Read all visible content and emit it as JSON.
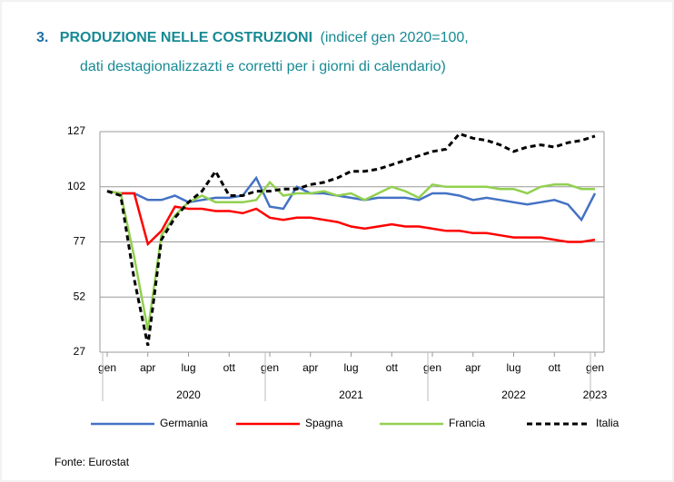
{
  "chart_data": {
    "type": "line",
    "title_number": "3.",
    "title": "PRODUZIONE NELLE COSTRUZIONI",
    "subtitle": [
      "(indicef gen 2020=100,",
      "dati destagionalizzazti e corretti per i giorni di calendario)"
    ],
    "categories": [
      "gen",
      null,
      null,
      "apr",
      null,
      null,
      "lug",
      null,
      null,
      "ott",
      null,
      null,
      "gen",
      null,
      null,
      "apr",
      null,
      null,
      "lug",
      null,
      null,
      "ott",
      null,
      null,
      "gen",
      null,
      null,
      "apr",
      null,
      null,
      "lug",
      null,
      null,
      "ott",
      null,
      null,
      "gen"
    ],
    "years": [
      "2020",
      "2021",
      "2022",
      "2023"
    ],
    "ylim": [
      27,
      127
    ],
    "yticks": [
      27,
      52,
      77,
      102,
      127
    ],
    "grid": true,
    "series": [
      {
        "name": "Germania",
        "color": "#4472c4",
        "dash": false,
        "values": [
          100,
          99,
          99,
          96,
          96,
          98,
          95,
          96,
          97,
          97,
          98,
          106,
          93,
          92,
          102,
          99,
          99,
          98,
          97,
          96,
          97,
          97,
          97,
          96,
          99,
          99,
          98,
          96,
          97,
          96,
          95,
          94,
          95,
          96,
          94,
          87,
          99
        ]
      },
      {
        "name": "Spagna",
        "color": "#ff0000",
        "dash": false,
        "values": [
          100,
          99,
          99,
          76,
          82,
          93,
          92,
          92,
          91,
          91,
          90,
          92,
          88,
          87,
          88,
          88,
          87,
          86,
          84,
          83,
          84,
          85,
          84,
          84,
          83,
          82,
          82,
          81,
          81,
          80,
          79,
          79,
          79,
          78,
          77,
          77,
          78
        ]
      },
      {
        "name": "Francia",
        "color": "#92d050",
        "dash": false,
        "values": [
          100,
          99,
          70,
          37,
          80,
          89,
          95,
          98,
          95,
          95,
          95,
          96,
          104,
          98,
          99,
          99,
          100,
          98,
          99,
          96,
          99,
          102,
          100,
          97,
          103,
          102,
          102,
          102,
          102,
          101,
          101,
          99,
          102,
          103,
          103,
          101,
          101
        ]
      },
      {
        "name": "Italia",
        "color": "#000000",
        "dash": true,
        "values": [
          100,
          98,
          60,
          30,
          78,
          88,
          95,
          100,
          109,
          98,
          98,
          100,
          100,
          101,
          101,
          103,
          104,
          106,
          109,
          109,
          110,
          112,
          114,
          116,
          118,
          119,
          126,
          124,
          123,
          121,
          118,
          120,
          121,
          120,
          122,
          123,
          125
        ]
      }
    ],
    "source": "Fonte: Eurostat"
  }
}
